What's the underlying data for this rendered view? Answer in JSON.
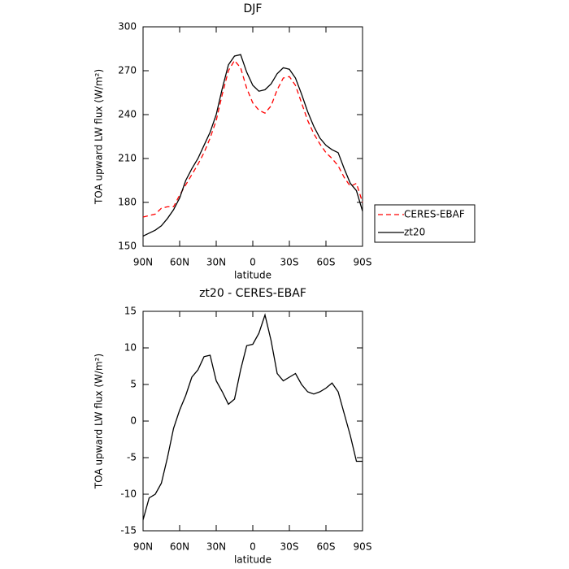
{
  "chart_data": [
    {
      "type": "line",
      "title": "DJF",
      "x_label": "latitude",
      "y_label": "TOA upward LW flux (W/m²)",
      "x": [
        90,
        85,
        80,
        75,
        70,
        65,
        60,
        55,
        50,
        45,
        40,
        35,
        30,
        25,
        20,
        15,
        10,
        5,
        0,
        -5,
        -10,
        -15,
        -20,
        -25,
        -30,
        -35,
        -40,
        -45,
        -50,
        -55,
        -60,
        -65,
        -70,
        -75,
        -80,
        -85,
        -90
      ],
      "xlim": [
        90,
        -90
      ],
      "xticks": [
        {
          "value": 90,
          "label": "90N"
        },
        {
          "value": 60,
          "label": "60N"
        },
        {
          "value": 30,
          "label": "30N"
        },
        0,
        {
          "value": -30,
          "label": "30S"
        },
        {
          "value": -60,
          "label": "60S"
        },
        {
          "value": -90,
          "label": "90S"
        }
      ],
      "ylim": [
        150,
        300
      ],
      "yticks": [
        150,
        180,
        210,
        240,
        270,
        300
      ],
      "legend": "right",
      "series": [
        {
          "name": "CERES-EBAF",
          "color": "#ff0000",
          "line_style": "dashed",
          "values": [
            170,
            171,
            172,
            176,
            177,
            177,
            185,
            192,
            199,
            206,
            214,
            224,
            236,
            254,
            270,
            277,
            272,
            258,
            248,
            243,
            241,
            246,
            257,
            265,
            266,
            260,
            248,
            236,
            227,
            220,
            214,
            210,
            205,
            197,
            191,
            193,
            180
          ]
        },
        {
          "name": "zt20",
          "color": "#000000",
          "line_style": "solid",
          "values": [
            157,
            159,
            161,
            164,
            169,
            175,
            183,
            195,
            203,
            210,
            219,
            228,
            240,
            258,
            274,
            280,
            281,
            269,
            260,
            256,
            257,
            261,
            268,
            272,
            271,
            265,
            254,
            242,
            232,
            224,
            219,
            216,
            214,
            203,
            193,
            188,
            174
          ]
        }
      ]
    },
    {
      "type": "line",
      "title": "zt20 - CERES-EBAF",
      "x_label": "latitude",
      "y_label": "TOA upward LW flux (W/m²)",
      "x": [
        90,
        85,
        80,
        75,
        70,
        65,
        60,
        55,
        50,
        45,
        40,
        35,
        30,
        25,
        20,
        15,
        10,
        5,
        0,
        -5,
        -10,
        -15,
        -20,
        -25,
        -30,
        -35,
        -40,
        -45,
        -50,
        -55,
        -60,
        -65,
        -70,
        -75,
        -80,
        -85,
        -90
      ],
      "xlim": [
        90,
        -90
      ],
      "xticks": [
        {
          "value": 90,
          "label": "90N"
        },
        {
          "value": 60,
          "label": "60N"
        },
        {
          "value": 30,
          "label": "30N"
        },
        0,
        {
          "value": -30,
          "label": "30S"
        },
        {
          "value": -60,
          "label": "60S"
        },
        {
          "value": -90,
          "label": "90S"
        }
      ],
      "ylim": [
        -15,
        15
      ],
      "yticks": [
        -15,
        -10,
        -5,
        0,
        5,
        10,
        15
      ],
      "series": [
        {
          "color": "#000000",
          "line_style": "solid",
          "values": [
            -13.5,
            -10.5,
            -10,
            -8.5,
            -5,
            -1,
            1.5,
            3.5,
            6,
            7,
            8.8,
            9,
            5.5,
            4,
            2.3,
            3,
            7,
            10.3,
            10.5,
            12,
            14.5,
            11,
            6.5,
            5.5,
            6,
            6.5,
            5,
            4,
            3.7,
            4,
            4.5,
            5.2,
            4,
            1,
            -2,
            -5.5,
            -5.5
          ]
        }
      ]
    }
  ]
}
